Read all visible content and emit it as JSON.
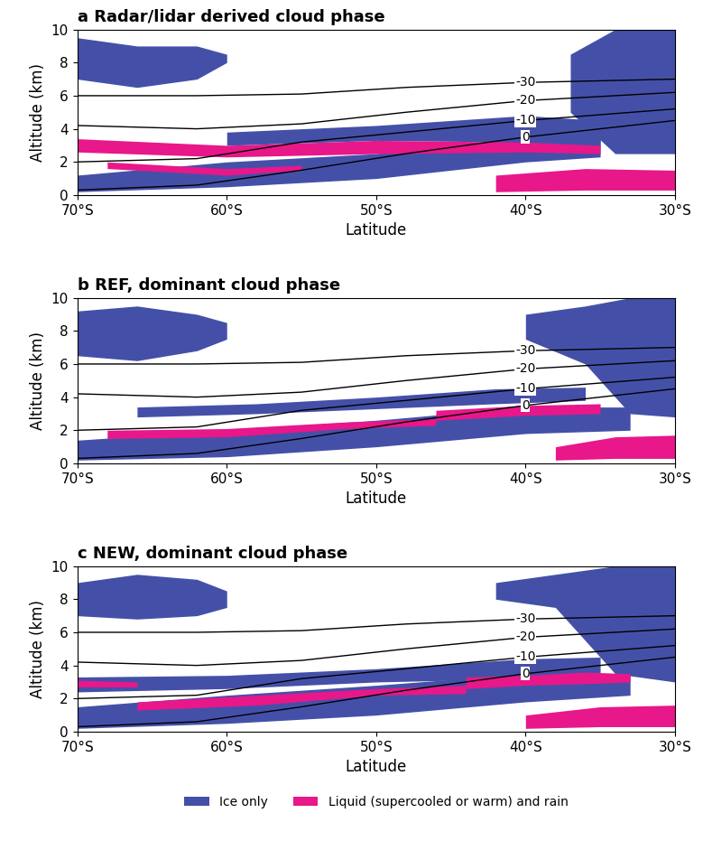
{
  "chart_data": [
    {
      "type": "area",
      "title": "a Radar/lidar derived cloud phase",
      "xlabel": "Latitude",
      "ylabel": "Altitude (km)",
      "xlim": [
        -70,
        -30
      ],
      "ylim": [
        0,
        10
      ],
      "xticks": [
        {
          "value": -70,
          "label": "70°S"
        },
        {
          "value": -60,
          "label": "60°S"
        },
        {
          "value": -50,
          "label": "50°S"
        },
        {
          "value": -40,
          "label": "40°S"
        },
        {
          "value": -30,
          "label": "30°S"
        }
      ],
      "yticks": [
        0,
        2,
        4,
        6,
        8,
        10
      ],
      "series": [
        {
          "name": "Ice only",
          "color": "#4450a8",
          "regions": [
            {
              "lat": [
                -70,
                -66,
                -62,
                -60
              ],
              "bottom": [
                7.0,
                6.5,
                7.0,
                8.0
              ],
              "top": [
                9.5,
                9.0,
                9.0,
                8.5
              ]
            },
            {
              "lat": [
                -37,
                -34,
                -30
              ],
              "bottom": [
                5.0,
                2.5,
                2.5
              ],
              "top": [
                8.5,
                10.0,
                10.0
              ]
            },
            {
              "lat": [
                -70,
                -60,
                -50,
                -40,
                -35
              ],
              "bottom": [
                0.2,
                0.5,
                1.0,
                2.0,
                2.3
              ],
              "top": [
                1.2,
                2.0,
                2.5,
                3.5,
                3.5
              ]
            },
            {
              "lat": [
                -60,
                -50,
                -40,
                -35
              ],
              "bottom": [
                3.0,
                3.3,
                3.2,
                3.0
              ],
              "top": [
                3.8,
                4.2,
                4.8,
                4.5
              ]
            }
          ]
        },
        {
          "name": "Liquid (supercooled or warm) and rain",
          "color": "#e8178a",
          "regions": [
            {
              "lat": [
                -70,
                -60,
                -50,
                -40,
                -35
              ],
              "bottom": [
                2.6,
                2.3,
                2.5,
                2.6,
                2.5
              ],
              "top": [
                3.4,
                3.0,
                3.3,
                3.2,
                3.0
              ]
            },
            {
              "lat": [
                -68,
                -60,
                -55
              ],
              "bottom": [
                1.6,
                1.2,
                1.5
              ],
              "top": [
                2.0,
                1.6,
                1.8
              ]
            },
            {
              "lat": [
                -42,
                -36,
                -30
              ],
              "bottom": [
                0.2,
                0.3,
                0.3
              ],
              "top": [
                1.2,
                1.6,
                1.5
              ]
            }
          ]
        }
      ],
      "contours": [
        {
          "name": "-30",
          "lat": [
            -70,
            -62,
            -55,
            -48,
            -40,
            -30
          ],
          "altitude": [
            6.0,
            6.0,
            6.1,
            6.5,
            6.8,
            7.0
          ]
        },
        {
          "name": "-20",
          "lat": [
            -70,
            -62,
            -55,
            -48,
            -40,
            -30
          ],
          "altitude": [
            4.2,
            4.0,
            4.3,
            5.0,
            5.7,
            6.2
          ]
        },
        {
          "name": "-10",
          "lat": [
            -70,
            -62,
            -55,
            -48,
            -40,
            -30
          ],
          "altitude": [
            2.0,
            2.2,
            3.2,
            3.8,
            4.5,
            5.2
          ]
        },
        {
          "name": "0",
          "lat": [
            -70,
            -62,
            -55,
            -48,
            -40,
            -30
          ],
          "altitude": [
            0.3,
            0.6,
            1.5,
            2.5,
            3.5,
            4.5
          ]
        }
      ]
    },
    {
      "type": "area",
      "title": "b REF, dominant cloud phase",
      "xlabel": "Latitude",
      "ylabel": "Altitude (km)",
      "xlim": [
        -70,
        -30
      ],
      "ylim": [
        0,
        10
      ],
      "xticks": [
        {
          "value": -70,
          "label": "70°S"
        },
        {
          "value": -60,
          "label": "60°S"
        },
        {
          "value": -50,
          "label": "50°S"
        },
        {
          "value": -40,
          "label": "40°S"
        },
        {
          "value": -30,
          "label": "30°S"
        }
      ],
      "yticks": [
        0,
        2,
        4,
        6,
        8,
        10
      ],
      "series": [
        {
          "name": "Ice only",
          "color": "#4450a8",
          "regions": [
            {
              "lat": [
                -70,
                -66,
                -62,
                -60
              ],
              "bottom": [
                6.5,
                6.2,
                6.8,
                7.5
              ],
              "top": [
                9.2,
                9.5,
                9.0,
                8.5
              ]
            },
            {
              "lat": [
                -40,
                -36,
                -33,
                -30
              ],
              "bottom": [
                7.5,
                6.0,
                3.0,
                2.8
              ],
              "top": [
                9.0,
                9.5,
                10.0,
                10.0
              ]
            },
            {
              "lat": [
                -70,
                -60,
                -50,
                -40,
                -33
              ],
              "bottom": [
                0.2,
                0.4,
                1.0,
                1.8,
                2.0
              ],
              "top": [
                1.4,
                2.0,
                2.6,
                3.4,
                3.4
              ]
            },
            {
              "lat": [
                -66,
                -58,
                -50,
                -42,
                -36
              ],
              "bottom": [
                2.8,
                3.0,
                3.3,
                3.6,
                3.8
              ],
              "top": [
                3.4,
                3.6,
                4.0,
                4.5,
                4.6
              ]
            }
          ]
        },
        {
          "name": "Liquid (supercooled or warm) and rain",
          "color": "#e8178a",
          "regions": [
            {
              "lat": [
                -68,
                -60,
                -52,
                -46
              ],
              "bottom": [
                1.5,
                1.6,
                2.1,
                2.3
              ],
              "top": [
                2.0,
                2.1,
                2.5,
                2.7
              ]
            },
            {
              "lat": [
                -46,
                -40,
                -35
              ],
              "bottom": [
                2.6,
                2.9,
                3.0
              ],
              "top": [
                3.2,
                3.5,
                3.6
              ]
            },
            {
              "lat": [
                -38,
                -34,
                -30
              ],
              "bottom": [
                0.2,
                0.3,
                0.3
              ],
              "top": [
                1.0,
                1.6,
                1.7
              ]
            }
          ]
        }
      ],
      "contours": [
        {
          "name": "-30",
          "lat": [
            -70,
            -62,
            -55,
            -48,
            -40,
            -30
          ],
          "altitude": [
            6.0,
            6.0,
            6.1,
            6.5,
            6.8,
            7.0
          ]
        },
        {
          "name": "-20",
          "lat": [
            -70,
            -62,
            -55,
            -48,
            -40,
            -30
          ],
          "altitude": [
            4.2,
            4.0,
            4.3,
            5.0,
            5.7,
            6.2
          ]
        },
        {
          "name": "-10",
          "lat": [
            -70,
            -62,
            -55,
            -48,
            -40,
            -30
          ],
          "altitude": [
            2.0,
            2.2,
            3.2,
            3.8,
            4.5,
            5.2
          ]
        },
        {
          "name": "0",
          "lat": [
            -70,
            -62,
            -55,
            -48,
            -40,
            -30
          ],
          "altitude": [
            0.3,
            0.6,
            1.5,
            2.5,
            3.5,
            4.5
          ]
        }
      ]
    },
    {
      "type": "area",
      "title": "c NEW, dominant cloud phase",
      "xlabel": "Latitude",
      "ylabel": "Altitude (km)",
      "xlim": [
        -70,
        -30
      ],
      "ylim": [
        0,
        10
      ],
      "xticks": [
        {
          "value": -70,
          "label": "70°S"
        },
        {
          "value": -60,
          "label": "60°S"
        },
        {
          "value": -50,
          "label": "50°S"
        },
        {
          "value": -40,
          "label": "40°S"
        },
        {
          "value": -30,
          "label": "30°S"
        }
      ],
      "yticks": [
        0,
        2,
        4,
        6,
        8,
        10
      ],
      "legend": "upper center",
      "series": [
        {
          "name": "Ice only",
          "color": "#4450a8",
          "regions": [
            {
              "lat": [
                -70,
                -66,
                -62,
                -60
              ],
              "bottom": [
                7.0,
                6.8,
                7.0,
                7.5
              ],
              "top": [
                9.0,
                9.5,
                9.2,
                8.5
              ]
            },
            {
              "lat": [
                -42,
                -38,
                -34,
                -30
              ],
              "bottom": [
                8.0,
                7.5,
                3.5,
                3.0
              ],
              "top": [
                9.0,
                9.5,
                10.0,
                10.0
              ]
            },
            {
              "lat": [
                -70,
                -60,
                -50,
                -40,
                -33
              ],
              "bottom": [
                0.2,
                0.5,
                1.0,
                1.8,
                2.2
              ],
              "top": [
                1.5,
                2.2,
                2.8,
                3.5,
                3.5
              ]
            },
            {
              "lat": [
                -70,
                -60,
                -50,
                -40,
                -35
              ],
              "bottom": [
                2.4,
                2.6,
                3.0,
                3.2,
                3.5
              ],
              "top": [
                3.3,
                3.4,
                3.8,
                4.4,
                4.5
              ]
            }
          ]
        },
        {
          "name": "Liquid (supercooled or warm) and rain",
          "color": "#e8178a",
          "regions": [
            {
              "lat": [
                -66,
                -58,
                -50,
                -44
              ],
              "bottom": [
                1.3,
                1.6,
                2.2,
                2.3
              ],
              "top": [
                1.8,
                2.2,
                2.6,
                2.8
              ]
            },
            {
              "lat": [
                -44,
                -40,
                -36,
                -33
              ],
              "bottom": [
                2.6,
                2.8,
                2.9,
                3.0
              ],
              "top": [
                3.3,
                3.4,
                3.6,
                3.5
              ]
            },
            {
              "lat": [
                -40,
                -35,
                -30
              ],
              "bottom": [
                0.2,
                0.3,
                0.3
              ],
              "top": [
                1.0,
                1.5,
                1.6
              ]
            },
            {
              "lat": [
                -70,
                -66
              ],
              "bottom": [
                2.7,
                2.7
              ],
              "top": [
                3.1,
                3.0
              ]
            }
          ]
        }
      ],
      "contours": [
        {
          "name": "-30",
          "lat": [
            -70,
            -62,
            -55,
            -48,
            -40,
            -30
          ],
          "altitude": [
            6.0,
            6.0,
            6.1,
            6.5,
            6.8,
            7.0
          ]
        },
        {
          "name": "-20",
          "lat": [
            -70,
            -62,
            -55,
            -48,
            -40,
            -30
          ],
          "altitude": [
            4.2,
            4.0,
            4.3,
            5.0,
            5.7,
            6.2
          ]
        },
        {
          "name": "-10",
          "lat": [
            -70,
            -62,
            -55,
            -48,
            -40,
            -30
          ],
          "altitude": [
            2.0,
            2.2,
            3.2,
            3.8,
            4.5,
            5.2
          ]
        },
        {
          "name": "0",
          "lat": [
            -70,
            -62,
            -55,
            -48,
            -40,
            -30
          ],
          "altitude": [
            0.3,
            0.6,
            1.5,
            2.5,
            3.5,
            4.5
          ]
        }
      ]
    }
  ]
}
